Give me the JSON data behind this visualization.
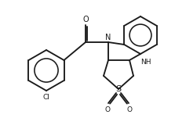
{
  "background_color": "#ffffff",
  "line_color": "#1a1a1a",
  "figsize": [
    2.19,
    1.7
  ],
  "dpi": 100,
  "notes": "Chemical structure of [(3aR,9aS)-2,2-dioxo-3,3a,9,9a-tetrahydro-1H-thieno[3,4-b]quinoxalin-4-yl]-(4-chlorophenyl)methanone"
}
